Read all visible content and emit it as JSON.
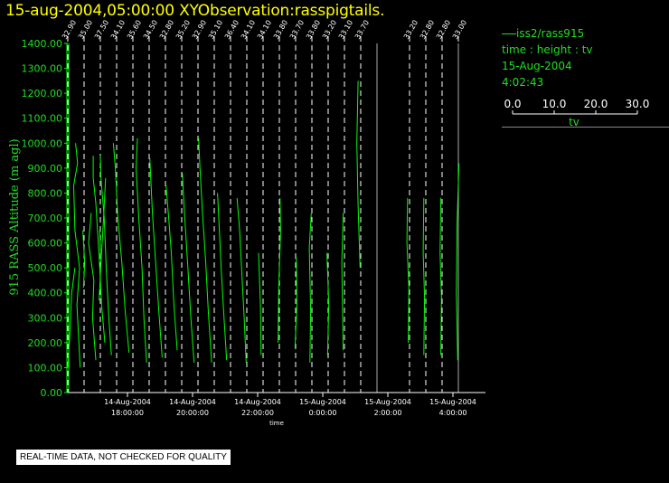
{
  "title": "15-aug-2004,05:00:00  XYObservation:rasspigtails.",
  "footer_text": "REAL-TIME DATA, NOT CHECKED FOR QUALITY",
  "legend": {
    "series_label": "iss2/rass915",
    "line2": "time : height : tv",
    "line3": "15-Aug-2004",
    "line4": "4:02:43",
    "scale_ticks": [
      "0.0",
      "10.0",
      "20.0",
      "30.0"
    ],
    "scale_label": "tv"
  },
  "colors": {
    "title": "#ffff00",
    "data": "#00ff00",
    "axis": "#ffffff",
    "legend_text": "#22dd22"
  },
  "chart_data": {
    "type": "line",
    "title": "15-aug-2004,05:00:00  XYObservation:rasspigtails.",
    "ylabel": "915 RASS Altitude (m agl)",
    "xlabel": "time",
    "ylim": [
      0,
      1400
    ],
    "y_ticks": [
      "0.00",
      "100.00",
      "200.00",
      "300.00",
      "400.00",
      "500.00",
      "600.00",
      "700.00",
      "800.00",
      "900.00",
      "1000.00",
      "1100.00",
      "1200.00",
      "1300.00",
      "1400.00"
    ],
    "x_range_hours": [
      "2004-08-14T16:10",
      "2004-08-15T05:00"
    ],
    "x_ticks": [
      {
        "time": "2004-08-14T18:00",
        "date": "14-Aug-2004",
        "clock": "18:00:00"
      },
      {
        "time": "2004-08-14T20:00",
        "date": "14-Aug-2004",
        "clock": "20:00:00"
      },
      {
        "time": "2004-08-14T22:00",
        "date": "14-Aug-2004",
        "clock": "22:00:00"
      },
      {
        "time": "2004-08-15T00:00",
        "date": "15-Aug-2004",
        "clock": "0:00:00"
      },
      {
        "time": "2004-08-15T02:00",
        "date": "15-Aug-2004",
        "clock": "2:00:00"
      },
      {
        "time": "2004-08-15T04:00",
        "date": "15-Aug-2004",
        "clock": "4:00:00"
      }
    ],
    "profiles": [
      {
        "time": "2004-08-14T16:10",
        "label": "32.90"
      },
      {
        "time": "2004-08-14T16:40",
        "label": "35.00"
      },
      {
        "time": "2004-08-14T17:10",
        "label": "37.50"
      },
      {
        "time": "2004-08-14T17:40",
        "label": "34.10"
      },
      {
        "time": "2004-08-14T18:10",
        "label": "35.60"
      },
      {
        "time": "2004-08-14T18:40",
        "label": "34.50"
      },
      {
        "time": "2004-08-14T19:10",
        "label": "32.80"
      },
      {
        "time": "2004-08-14T19:40",
        "label": "35.20"
      },
      {
        "time": "2004-08-14T20:10",
        "label": "32.90"
      },
      {
        "time": "2004-08-14T20:40",
        "label": "35.10"
      },
      {
        "time": "2004-08-14T21:10",
        "label": "36.40"
      },
      {
        "time": "2004-08-14T21:40",
        "label": "34.10"
      },
      {
        "time": "2004-08-14T22:10",
        "label": "34.10"
      },
      {
        "time": "2004-08-14T22:40",
        "label": "33.80"
      },
      {
        "time": "2004-08-14T23:10",
        "label": "33.70"
      },
      {
        "time": "2004-08-14T23:40",
        "label": "33.80"
      },
      {
        "time": "2004-08-15T00:10",
        "label": "33.20"
      },
      {
        "time": "2004-08-15T00:40",
        "label": "33.10"
      },
      {
        "time": "2004-08-15T01:10",
        "label": "33.70"
      },
      {
        "time": "2004-08-15T02:40",
        "label": "33.20"
      },
      {
        "time": "2004-08-15T03:10",
        "label": "32.80"
      },
      {
        "time": "2004-08-15T03:40",
        "label": "32.80"
      },
      {
        "time": "2004-08-15T04:10",
        "label": "33.00"
      }
    ],
    "series": [
      {
        "name": "iss2/rass915",
        "traces": [
          {
            "p": 0,
            "pts": [
              [
                0,
                100
              ],
              [
                0.3,
                230
              ],
              [
                0.6,
                400
              ],
              [
                1.1,
                500
              ]
            ]
          },
          {
            "p": 1,
            "pts": [
              [
                -0.6,
                100
              ],
              [
                -1.1,
                350
              ],
              [
                -0.7,
                500
              ],
              [
                -1.4,
                650
              ],
              [
                -1.6,
                830
              ],
              [
                -1.0,
                920
              ],
              [
                -1.3,
                1000
              ]
            ]
          },
          {
            "p": 1,
            "pts": [
              [
                -0.1,
                420
              ],
              [
                0.1,
                520
              ],
              [
                -0.2,
                650
              ]
            ]
          },
          {
            "p": 2,
            "pts": [
              [
                -0.7,
                130
              ],
              [
                -1.2,
                300
              ],
              [
                -1.0,
                450
              ],
              [
                -1.8,
                600
              ],
              [
                -1.4,
                720
              ]
            ]
          },
          {
            "p": 2,
            "pts": [
              [
                -0.2,
                370
              ],
              [
                0.1,
                520
              ],
              [
                -0.1,
                650
              ]
            ]
          },
          {
            "p": 2,
            "pts": [
              [
                0.1,
                520
              ],
              [
                0.5,
                700
              ],
              [
                0.8,
                860
              ]
            ]
          },
          {
            "p": 3,
            "pts": [
              [
                -0.8,
                150
              ],
              [
                -1.2,
                300
              ],
              [
                -1.6,
                500
              ],
              [
                -1.9,
                700
              ],
              [
                -2.4,
                860
              ],
              [
                -2.5,
                950
              ]
            ]
          },
          {
            "p": 3,
            "pts": [
              [
                -1.8,
                200
              ],
              [
                -2.3,
                350
              ],
              [
                -2.7,
                550
              ],
              [
                -3.2,
                760
              ],
              [
                -3.6,
                860
              ],
              [
                -3.6,
                950
              ]
            ]
          },
          {
            "p": 4,
            "pts": [
              [
                -0.6,
                160
              ],
              [
                -1.2,
                330
              ],
              [
                -1.7,
                520
              ],
              [
                -2.3,
                700
              ],
              [
                -2.7,
                900
              ],
              [
                -3.0,
                1000
              ]
            ]
          },
          {
            "p": 5,
            "pts": [
              [
                -0.4,
                120
              ],
              [
                -0.8,
                300
              ],
              [
                -1.1,
                500
              ],
              [
                -1.6,
                700
              ],
              [
                -2.0,
                900
              ],
              [
                -1.8,
                1020
              ]
            ]
          },
          {
            "p": 6,
            "pts": [
              [
                -0.5,
                140
              ],
              [
                -1.0,
                320
              ],
              [
                -1.5,
                520
              ],
              [
                -2.0,
                720
              ],
              [
                -2.4,
                940
              ]
            ]
          },
          {
            "p": 7,
            "pts": [
              [
                -0.7,
                170
              ],
              [
                -1.2,
                350
              ],
              [
                -1.6,
                560
              ],
              [
                -2.0,
                700
              ],
              [
                -2.4,
                830
              ]
            ]
          },
          {
            "p": 8,
            "pts": [
              [
                -0.6,
                120
              ],
              [
                -1.1,
                300
              ],
              [
                -1.6,
                520
              ],
              [
                -2.1,
                730
              ],
              [
                -2.4,
                880
              ]
            ]
          },
          {
            "p": 9,
            "pts": [
              [
                -0.4,
                120
              ],
              [
                -0.9,
                320
              ],
              [
                -1.3,
                520
              ],
              [
                -1.8,
                720
              ],
              [
                -2.2,
                900
              ],
              [
                -2.4,
                1020
              ]
            ]
          },
          {
            "p": 10,
            "pts": [
              [
                -0.6,
                130
              ],
              [
                -1.0,
                300
              ],
              [
                -1.4,
                480
              ],
              [
                -1.7,
                640
              ],
              [
                -2.0,
                800
              ]
            ]
          },
          {
            "p": 11,
            "pts": [
              [
                -0.1,
                120
              ],
              [
                -0.4,
                300
              ],
              [
                -0.8,
                500
              ],
              [
                -1.1,
                650
              ],
              [
                -1.5,
                780
              ]
            ]
          },
          {
            "p": 12,
            "pts": [
              [
                -0.3,
                150
              ],
              [
                -0.4,
                350
              ],
              [
                -0.7,
                560
              ]
            ]
          },
          {
            "p": 13,
            "pts": [
              [
                -0.2,
                200
              ],
              [
                -0.1,
                420
              ],
              [
                0.2,
                650
              ],
              [
                0.1,
                780
              ]
            ]
          },
          {
            "p": 14,
            "pts": [
              [
                -0.1,
                180
              ],
              [
                0.2,
                350
              ],
              [
                0.1,
                540
              ]
            ]
          },
          {
            "p": 15,
            "pts": [
              [
                -0.3,
                120
              ],
              [
                -0.2,
                330
              ],
              [
                -0.4,
                580
              ],
              [
                -0.1,
                720
              ]
            ]
          },
          {
            "p": 16,
            "pts": [
              [
                -0.1,
                150
              ],
              [
                0.1,
                350
              ],
              [
                -0.2,
                560
              ]
            ]
          },
          {
            "p": 17,
            "pts": [
              [
                -0.2,
                170
              ],
              [
                -0.3,
                350
              ],
              [
                -0.4,
                520
              ],
              [
                -0.2,
                720
              ]
            ]
          },
          {
            "p": 18,
            "pts": [
              [
                -0.1,
                500
              ],
              [
                -0.4,
                750
              ],
              [
                -0.6,
                1000
              ],
              [
                -0.4,
                1250
              ]
            ]
          },
          {
            "p": 19,
            "pts": [
              [
                -0.2,
                200
              ],
              [
                -0.1,
                420
              ],
              [
                -0.4,
                600
              ],
              [
                -0.3,
                780
              ]
            ]
          },
          {
            "p": 20,
            "pts": [
              [
                -0.3,
                150
              ],
              [
                -0.2,
                380
              ],
              [
                -0.4,
                560
              ],
              [
                -0.3,
                780
              ]
            ]
          },
          {
            "p": 21,
            "pts": [
              [
                -0.2,
                150
              ],
              [
                -0.1,
                380
              ],
              [
                -0.3,
                560
              ],
              [
                -0.2,
                780
              ]
            ]
          },
          {
            "p": 22,
            "pts": [
              [
                -0.1,
                130
              ],
              [
                -0.3,
                400
              ],
              [
                -0.2,
                680
              ],
              [
                0.1,
                920
              ]
            ]
          }
        ]
      }
    ]
  }
}
